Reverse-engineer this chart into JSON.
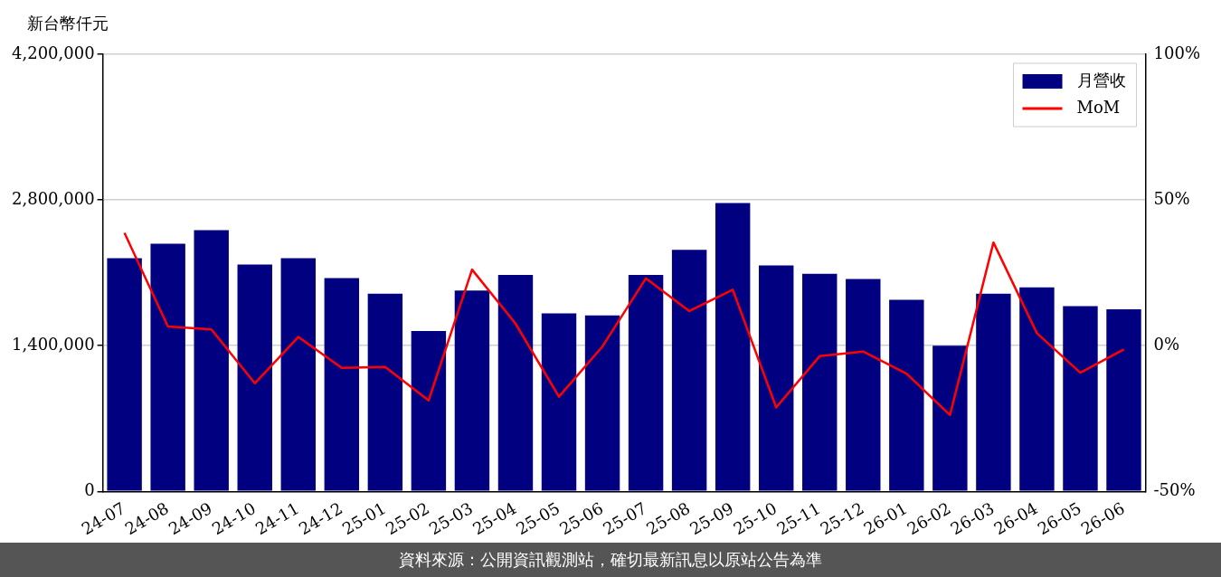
{
  "chart_data": {
    "type": "bar",
    "ylabel": "新台幣仟元",
    "annotations": [
      "資料來源：公開資訊觀測站，確切最新訊息以原站公告為準"
    ],
    "categories": [
      "24-07",
      "24-08",
      "24-09",
      "24-10",
      "24-11",
      "24-12",
      "25-01",
      "25-02",
      "25-03",
      "25-04",
      "25-05",
      "25-06",
      "25-07",
      "25-08",
      "25-09",
      "25-10",
      "25-11",
      "25-12",
      "26-01",
      "26-02",
      "26-03",
      "26-04",
      "26-05",
      "26-06"
    ],
    "series": [
      {
        "name": "月營收",
        "color": "#000080",
        "values": [
          2240000,
          2380000,
          2510000,
          2180000,
          2240000,
          2050000,
          1900000,
          1540000,
          1930000,
          2080000,
          1710000,
          1690000,
          2080000,
          2320000,
          2770000,
          2170000,
          2090000,
          2040000,
          1840000,
          1400000,
          1900000,
          1960000,
          1780000,
          1750000
        ]
      },
      {
        "name": "MoM",
        "type": "line",
        "axis": "y2",
        "color": "#ff0000",
        "values": [
          38.7,
          6.6,
          5.6,
          -12.9,
          3.0,
          -7.6,
          -7.3,
          -18.8,
          26.1,
          7.6,
          -17.5,
          -0.3,
          23.1,
          11.9,
          19.2,
          -21.2,
          -3.6,
          -2.0,
          -9.6,
          -23.8,
          35.4,
          4.3,
          -9.3,
          -1.3
        ]
      }
    ],
    "ylim": [
      0,
      4200000
    ],
    "yticks": [
      {
        "value": 0,
        "label": "0"
      },
      {
        "value": 1400000,
        "label": "1,400,000"
      },
      {
        "value": 2800000,
        "label": "2,800,000"
      },
      {
        "value": 4200000,
        "label": "4,200,000"
      }
    ],
    "y2lim": [
      -50,
      100
    ],
    "y2ticks": [
      {
        "value": -50,
        "label": "-50%"
      },
      {
        "value": 0,
        "label": "0%"
      },
      {
        "value": 50,
        "label": "50%"
      },
      {
        "value": 100,
        "label": "100%"
      }
    ],
    "grid": "y",
    "legend": "top right",
    "marker": "none",
    "line_style": "solid"
  }
}
